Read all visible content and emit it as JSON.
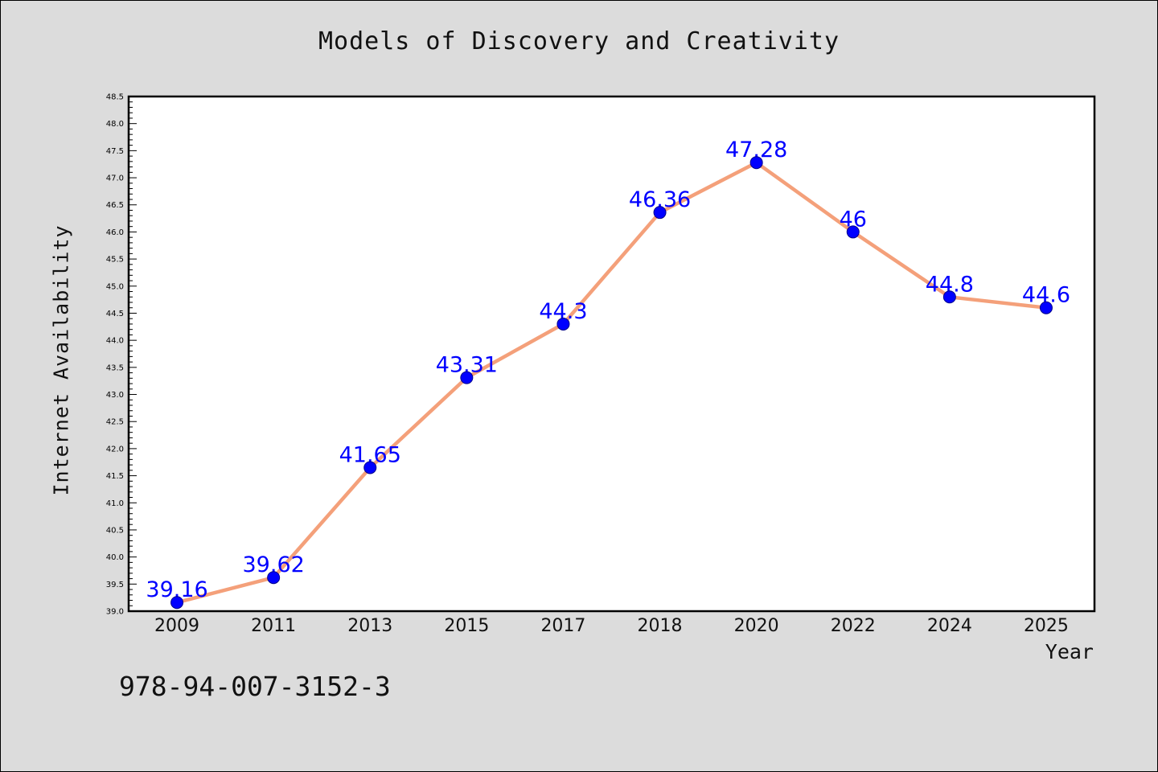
{
  "chart_data": {
    "type": "line",
    "title": "Models of Discovery and Creativity",
    "xlabel": "Year",
    "ylabel": "Internet Availability",
    "categories": [
      "2009",
      "2011",
      "2013",
      "2015",
      "2017",
      "2018",
      "2020",
      "2022",
      "2024",
      "2025"
    ],
    "series": [
      {
        "values": [
          39.16,
          39.62,
          41.65,
          43.31,
          44.3,
          46.36,
          47.28,
          46,
          44.8,
          44.6
        ],
        "data_labels": [
          "39.16",
          "39.62",
          "41.65",
          "43.31",
          "44.3",
          "46.36",
          "47.28",
          "46",
          "44.8",
          "44.6"
        ]
      }
    ],
    "ylim": [
      39.0,
      48.5
    ],
    "y_ticks": [
      "39.0",
      "39.5",
      "40.0",
      "40.5",
      "41.0",
      "41.5",
      "42.0",
      "42.5",
      "43.0",
      "43.5",
      "44.0",
      "44.5",
      "45.0",
      "45.5",
      "46.0",
      "46.5",
      "47.0",
      "47.5",
      "48.0",
      "48.5"
    ],
    "line_color": "#f4a07a",
    "marker_color": "#0000ff",
    "label_color": "#0000ff",
    "grid": false,
    "legend": "none"
  },
  "footer": {
    "isbn": "978-94-007-3152-3"
  }
}
